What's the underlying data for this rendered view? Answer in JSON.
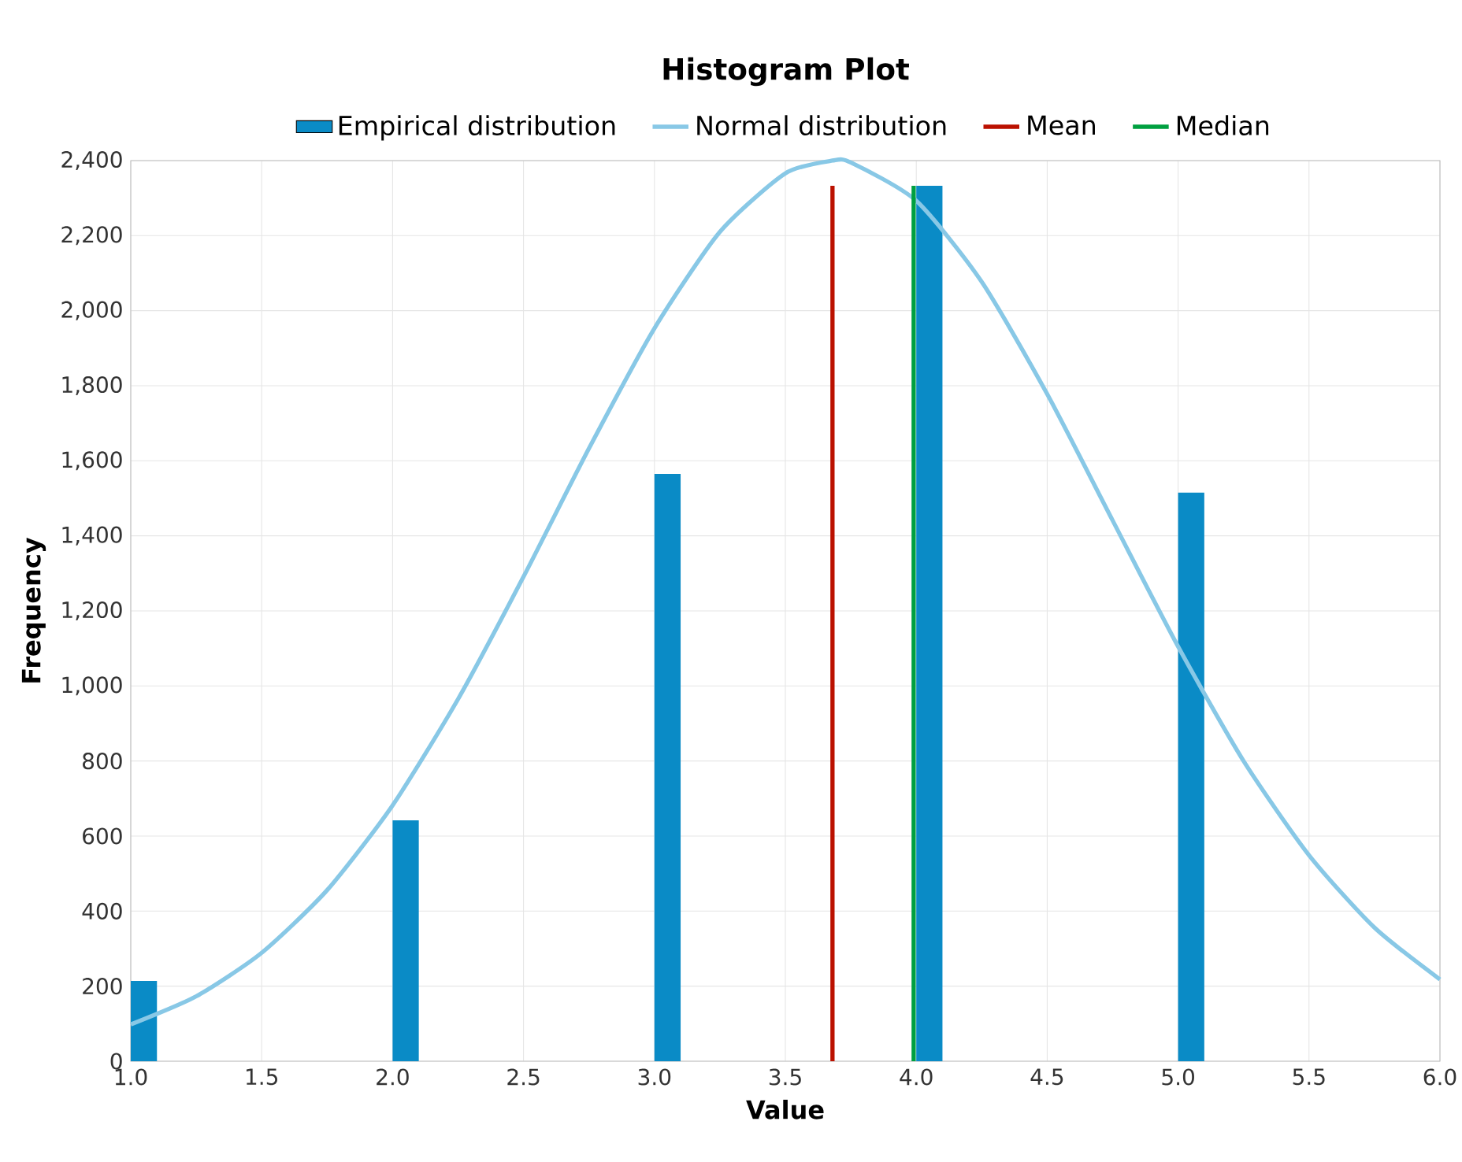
{
  "chart_data": {
    "type": "bar",
    "title": "Histogram Plot",
    "xlabel": "Value",
    "ylabel": "Frequency",
    "series": [
      {
        "name": "Empirical distribution",
        "color": "#0a8bc6",
        "x": [
          1,
          2,
          3,
          4,
          5
        ],
        "values": [
          214,
          642,
          1565,
          2333,
          1515
        ]
      },
      {
        "name": "Normal distribution",
        "type": "line",
        "color": "#88c8e6",
        "x": [
          1.0,
          1.25,
          1.5,
          1.75,
          2.0,
          2.25,
          2.5,
          2.75,
          3.0,
          3.25,
          3.5,
          3.68,
          3.75,
          4.0,
          4.25,
          4.5,
          4.75,
          5.0,
          5.25,
          5.5,
          5.75,
          6.0
        ],
        "values": [
          98,
          173,
          289,
          456,
          682,
          965,
          1291,
          1633,
          1953,
          2210,
          2366,
          2400,
          2395,
          2293,
          2077,
          1778,
          1441,
          1105,
          800,
          549,
          356,
          218
        ]
      },
      {
        "name": "Mean",
        "type": "line",
        "color": "#bb1100",
        "x": [
          3.68,
          3.68
        ],
        "values": [
          0,
          2333
        ]
      },
      {
        "name": "Median",
        "type": "line",
        "color": "#00a040",
        "x": [
          3.99,
          3.99
        ],
        "values": [
          0,
          2333
        ]
      }
    ],
    "xlim": [
      1,
      6
    ],
    "xticks": [
      {
        "value": 1,
        "label": "1.0"
      },
      1.5,
      {
        "value": 2,
        "label": "2.0"
      },
      2.5,
      {
        "value": 3,
        "label": "3.0"
      },
      3.5,
      {
        "value": 4,
        "label": "4.0"
      },
      4.5,
      {
        "value": 5,
        "label": "5.0"
      },
      5.5,
      {
        "value": 6,
        "label": "6.0"
      }
    ],
    "ylim": [
      0,
      2400
    ],
    "yticks": [
      0,
      200,
      400,
      600,
      800,
      {
        "value": 1000,
        "label": "1,000"
      },
      {
        "value": 1200,
        "label": "1,200"
      },
      {
        "value": 1400,
        "label": "1,400"
      },
      {
        "value": 1600,
        "label": "1,600"
      },
      {
        "value": 1800,
        "label": "1,800"
      },
      {
        "value": 2000,
        "label": "2,000"
      },
      {
        "value": 2200,
        "label": "2,200"
      },
      {
        "value": 2400,
        "label": "2,400"
      }
    ],
    "grid": true,
    "legend": "top",
    "marker": "none",
    "line_style": "solid"
  }
}
